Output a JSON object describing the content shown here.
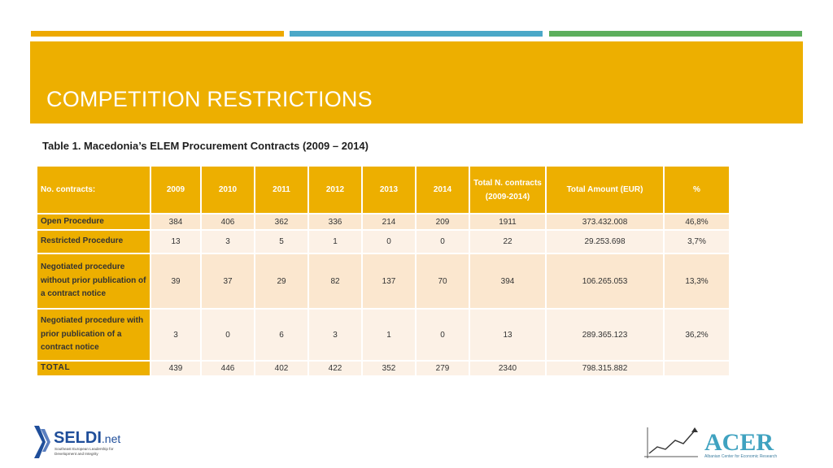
{
  "slide": {
    "title": "COMPETITION RESTRICTIONS",
    "caption": "Table 1. Macedonia’s ELEM Procurement Contracts (2009 – 2014)"
  },
  "table": {
    "headers": [
      "No. contracts:",
      "2009",
      "2010",
      "2011",
      "2012",
      "2013",
      "2014",
      "Total N. contracts (2009-2014)",
      "Total Amount (EUR)",
      "%"
    ],
    "rows": [
      {
        "label": "Open Procedure",
        "values": [
          "384",
          "406",
          "362",
          "336",
          "214",
          "209",
          "1911",
          "373.432.008",
          "46,8%"
        ]
      },
      {
        "label": "Restricted Procedure",
        "values": [
          "13",
          "3",
          "5",
          "1",
          "0",
          "0",
          "22",
          "29.253.698",
          "3,7%"
        ]
      },
      {
        "label": "Negotiated procedure without prior publication of a contract notice",
        "values": [
          "39",
          "37",
          "29",
          "82",
          "137",
          "70",
          "394",
          "106.265.053",
          "13,3%"
        ]
      },
      {
        "label": "Negotiated procedure with prior publication of a contract notice",
        "values": [
          "3",
          "0",
          "6",
          "3",
          "1",
          "0",
          "13",
          "289.365.123",
          "36,2%"
        ]
      },
      {
        "label": "TOTAL",
        "values": [
          "439",
          "446",
          "402",
          "422",
          "352",
          "279",
          "2340",
          "798.315.882",
          ""
        ]
      }
    ]
  },
  "logos": {
    "left_name": "SELDI",
    "left_suffix": ".net",
    "left_tagline_1": "Southeast European Leadership for",
    "left_tagline_2": "Development and Integrity",
    "right_name": "ACER",
    "right_tagline": "Albanian Center for Economic Research"
  },
  "colors": {
    "accent": "#EDAF00",
    "stripe_blue": "#4BA8C8",
    "stripe_green": "#5DAF5D",
    "row_tint": "#FBE7CF"
  }
}
